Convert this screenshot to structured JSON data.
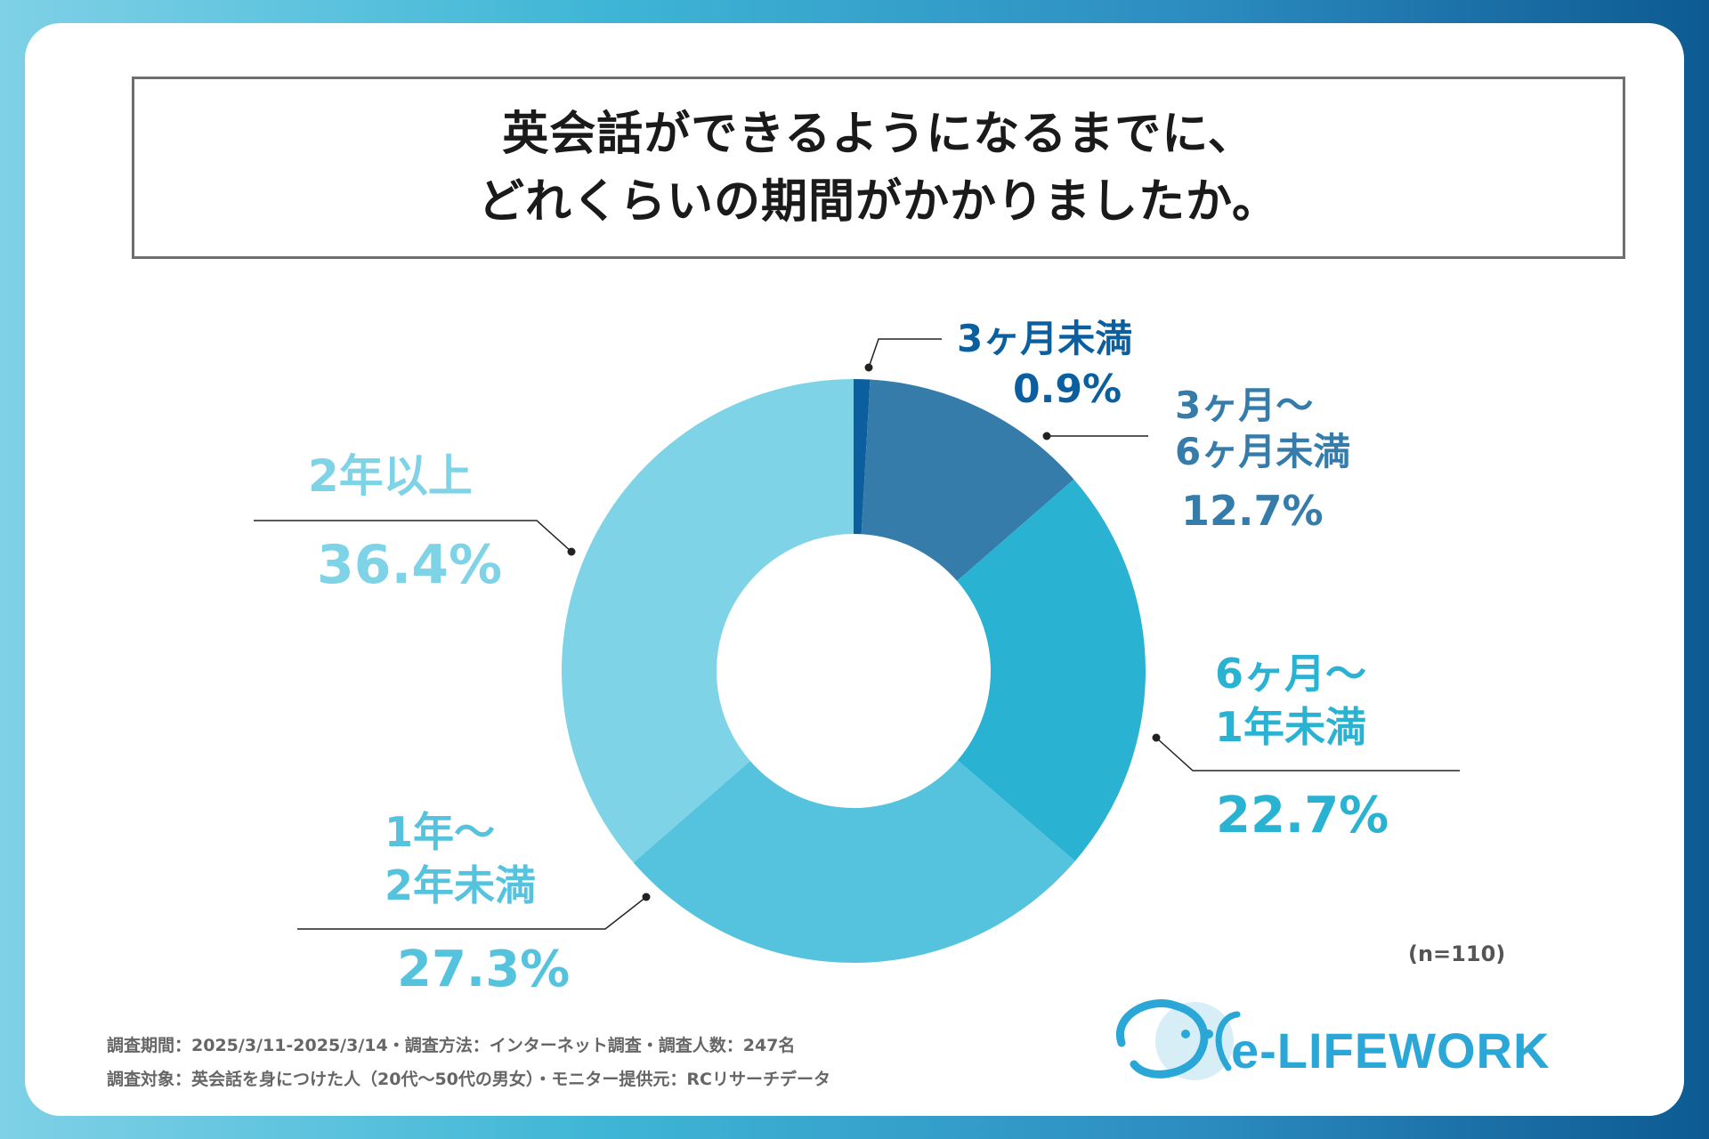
{
  "title": {
    "line1": "英会話ができるようになるまでに、",
    "line2": "どれくらいの期間がかかりましたか。"
  },
  "chart_data": {
    "type": "pie",
    "variant": "donut",
    "title": "英会話ができるようになるまでに、どれくらいの期間がかかりましたか。",
    "categories": [
      "3ヶ月未満",
      "3ヶ月〜6ヶ月未満",
      "6ヶ月〜1年未満",
      "1年〜2年未満",
      "2年以上"
    ],
    "values": [
      0.9,
      12.7,
      22.7,
      27.3,
      36.4
    ],
    "unit": "%",
    "colors": [
      "#0b5f9e",
      "#357cab",
      "#29b2d2",
      "#56c3de",
      "#7fd3e6"
    ],
    "labels": [
      {
        "line1": "3ヶ月未満",
        "line2": "",
        "value": "0.9%"
      },
      {
        "line1": "3ヶ月〜",
        "line2": "6ヶ月未満",
        "value": "12.7%"
      },
      {
        "line1": "6ヶ月〜",
        "line2": "1年未満",
        "value": "22.7%"
      },
      {
        "line1": "1年〜",
        "line2": "2年未満",
        "value": "27.3%"
      },
      {
        "line1": "2年以上",
        "line2": "",
        "value": "36.4%"
      }
    ],
    "sample_size": "(n=110)"
  },
  "footer": {
    "line1": "調査期間：2025/3/11-2025/3/14・調査方法：インターネット調査・調査人数：247名",
    "line2": "調査対象：英会話を身につけた人（20代〜50代の男女）・モニター提供元：RCリサーチデータ"
  },
  "logo": {
    "text": "e-LIFEWORK"
  }
}
